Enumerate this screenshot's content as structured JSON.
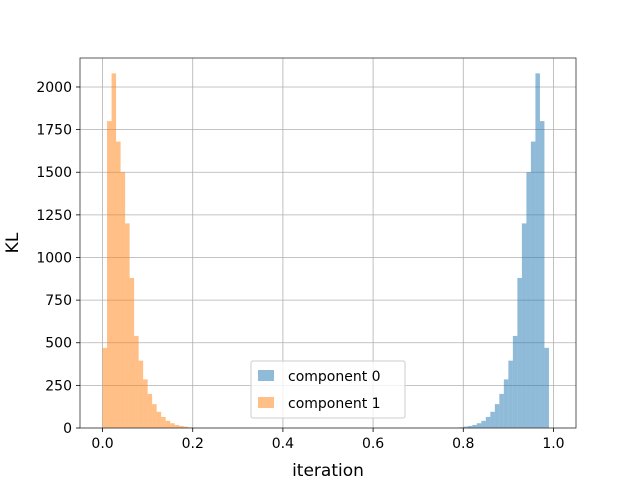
{
  "chart_data": {
    "type": "bar",
    "title": "",
    "xlabel": "iteration",
    "ylabel": "KL",
    "xlim": [
      -0.05,
      1.05
    ],
    "ylim": [
      0,
      2170
    ],
    "xticks": [
      0.0,
      0.2,
      0.4,
      0.6,
      0.8,
      1.0
    ],
    "xtick_labels": [
      "0.0",
      "0.2",
      "0.4",
      "0.6",
      "0.8",
      "1.0"
    ],
    "yticks": [
      0,
      250,
      500,
      750,
      1000,
      1250,
      1500,
      1750,
      2000
    ],
    "ytick_labels": [
      "0",
      "250",
      "500",
      "750",
      "1000",
      "1250",
      "1500",
      "1750",
      "2000"
    ],
    "grid": true,
    "legend_position": "bottom-center",
    "bin_width": 0.01,
    "series": [
      {
        "name": "component 0",
        "color": "#1f77b4",
        "opacity": 0.5,
        "bin_starts": [
          0.78,
          0.79,
          0.8,
          0.81,
          0.82,
          0.83,
          0.84,
          0.85,
          0.86,
          0.87,
          0.88,
          0.89,
          0.9,
          0.91,
          0.92,
          0.93,
          0.94,
          0.95,
          0.96,
          0.97,
          0.98,
          0.99
        ],
        "counts": [
          2,
          4,
          8,
          12,
          18,
          28,
          42,
          65,
          95,
          140,
          200,
          285,
          395,
          540,
          880,
          1200,
          1500,
          1680,
          2080,
          1800,
          470,
          0
        ]
      },
      {
        "name": "component 1",
        "color": "#ff7f0e",
        "opacity": 0.5,
        "bin_starts": [
          0.0,
          0.01,
          0.02,
          0.03,
          0.04,
          0.05,
          0.06,
          0.07,
          0.08,
          0.09,
          0.1,
          0.11,
          0.12,
          0.13,
          0.14,
          0.15,
          0.16,
          0.17,
          0.18,
          0.19,
          0.2,
          0.21
        ],
        "counts": [
          470,
          1800,
          2080,
          1680,
          1500,
          1200,
          880,
          540,
          395,
          285,
          200,
          140,
          95,
          65,
          42,
          28,
          18,
          12,
          8,
          4,
          2,
          0
        ]
      }
    ]
  }
}
